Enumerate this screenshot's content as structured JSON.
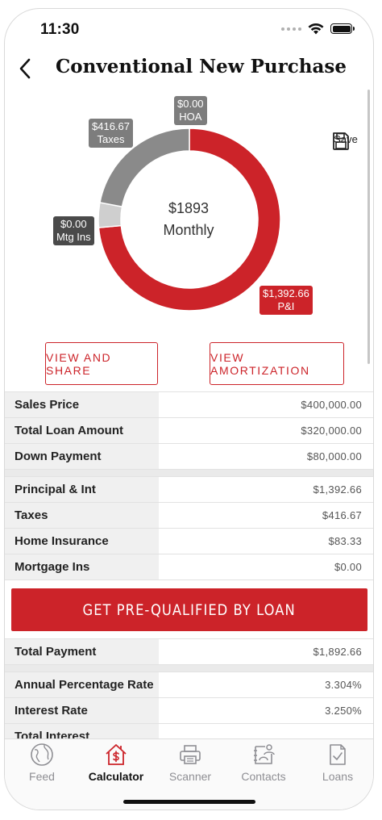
{
  "status": {
    "time": "11:30"
  },
  "nav": {
    "title": "Conventional New Purchase",
    "back_icon": "chevron-left-icon"
  },
  "chart_data": {
    "type": "pie",
    "title": "",
    "center_amount": "$1893",
    "center_label": "Monthly",
    "slices": [
      {
        "name": "P&I",
        "label": "$1,392.66",
        "value": 1392.66,
        "color": "#cc2329"
      },
      {
        "name": "Mtg Ins",
        "label": "$0.00",
        "value": 0.0,
        "color": "#cfcfcf"
      },
      {
        "name": "Taxes",
        "label": "$416.67",
        "value": 416.67,
        "color": "#8a8a8a"
      },
      {
        "name": "HOA",
        "label": "$0.00",
        "value": 0.0,
        "color": "#7d7d7d"
      }
    ],
    "home_insurance_value": 83.33
  },
  "save": {
    "label": "Save",
    "icon": "floppy-disk-icon"
  },
  "buttons": {
    "view_share": "VIEW AND SHARE",
    "view_amortization": "VIEW AMORTIZATION",
    "prequalify": "GET PRE-QUALIFIED BY LOAN"
  },
  "loan": [
    {
      "label": "Sales Price",
      "value": "$400,000.00"
    },
    {
      "label": "Total Loan Amount",
      "value": "$320,000.00"
    },
    {
      "label": "Down Payment",
      "value": "$80,000.00"
    }
  ],
  "payment": [
    {
      "label": "Principal & Int",
      "value": "$1,392.66"
    },
    {
      "label": "Taxes",
      "value": "$416.67"
    },
    {
      "label": "Home Insurance",
      "value": "$83.33"
    },
    {
      "label": "Mortgage Ins",
      "value": "$0.00"
    }
  ],
  "total": {
    "label": "Total Payment",
    "value": "$1,892.66"
  },
  "rates": [
    {
      "label": "Annual Percentage Rate",
      "value": "3.304%"
    },
    {
      "label": "Interest Rate",
      "value": "3.250%"
    },
    {
      "label": "Total Interest",
      "value": ""
    }
  ],
  "tabs": [
    {
      "label": "Feed",
      "icon": "globe-icon",
      "active": false
    },
    {
      "label": "Calculator",
      "icon": "house-dollar-icon",
      "active": true
    },
    {
      "label": "Scanner",
      "icon": "printer-icon",
      "active": false
    },
    {
      "label": "Contacts",
      "icon": "contacts-icon",
      "active": false
    },
    {
      "label": "Loans",
      "icon": "document-check-icon",
      "active": false
    }
  ],
  "colors": {
    "accent": "#cc2329",
    "gray": "#8a8a8a",
    "light": "#cfcfcf"
  }
}
